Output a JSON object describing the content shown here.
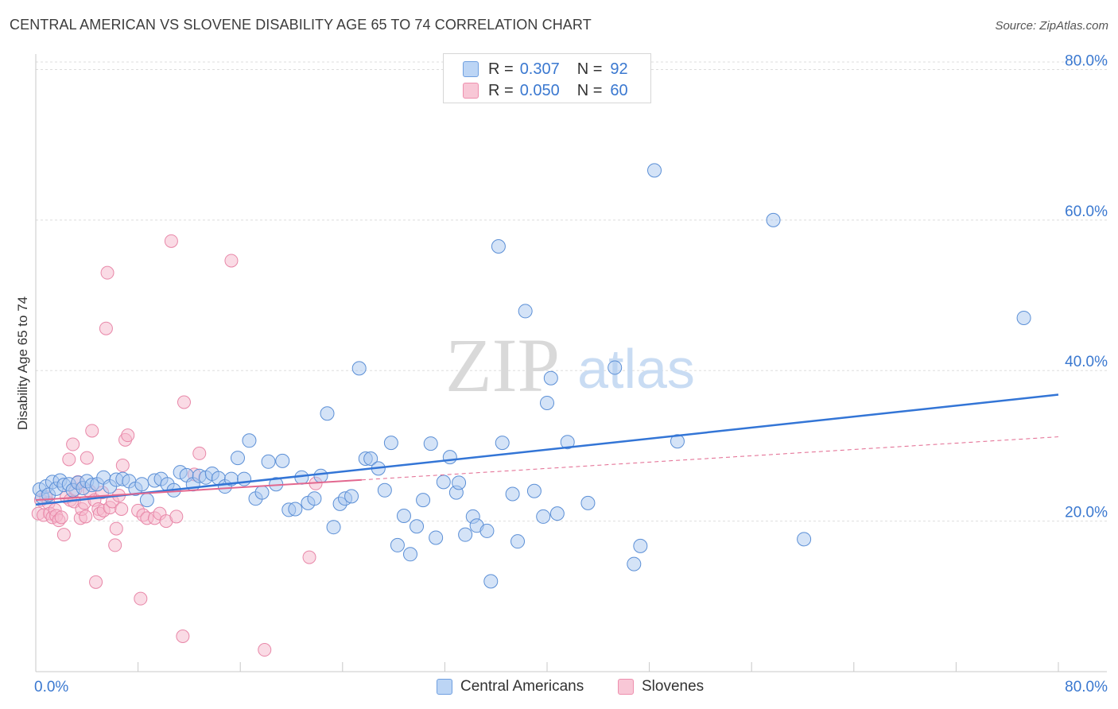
{
  "header": {
    "title": "CENTRAL AMERICAN VS SLOVENE DISABILITY AGE 65 TO 74 CORRELATION CHART",
    "source": "Source: ZipAtlas.com"
  },
  "watermark": {
    "zip": "ZIP",
    "atlas": "atlas"
  },
  "legend": {
    "r_label": "R =",
    "n_label": "N =",
    "series": [
      {
        "name": "Central Americans",
        "r": "0.307",
        "n": "92"
      },
      {
        "name": "Slovenes",
        "r": "0.050",
        "n": "60"
      }
    ]
  },
  "colors": {
    "blue_fill": "#a9c8f0",
    "blue_stroke": "#5b8fd6",
    "blue_line": "#3375d6",
    "pink_fill": "#f6b8cc",
    "pink_stroke": "#e887a8",
    "pink_line": "#e2688f",
    "axis_text": "#3a78d0"
  },
  "chart_data": {
    "type": "scatter",
    "title": "CENTRAL AMERICAN VS SLOVENE DISABILITY AGE 65 TO 74 CORRELATION CHART",
    "xlabel": "",
    "ylabel": "Disability Age 65 to 74",
    "xlim": [
      0,
      80
    ],
    "ylim": [
      0,
      81
    ],
    "x_tick_labels": [
      "0.0%",
      "80.0%"
    ],
    "y_ticks": [
      20,
      40,
      60,
      80
    ],
    "y_tick_labels": [
      "20.0%",
      "40.0%",
      "60.0%",
      "80.0%"
    ],
    "grid": true,
    "series": [
      {
        "name": "Central Americans",
        "r": 0.307,
        "n": 92,
        "trend": {
          "x": [
            0,
            80
          ],
          "y": [
            22.2,
            36.8
          ],
          "style": "solid"
        },
        "points": [
          {
            "x": 0.3,
            "y": 24.2
          },
          {
            "x": 0.5,
            "y": 23.2
          },
          {
            "x": 0.8,
            "y": 24.6
          },
          {
            "x": 1.0,
            "y": 23.5
          },
          {
            "x": 1.3,
            "y": 25.2
          },
          {
            "x": 1.6,
            "y": 24.3
          },
          {
            "x": 1.9,
            "y": 25.4
          },
          {
            "x": 2.2,
            "y": 24.8
          },
          {
            "x": 2.6,
            "y": 24.9
          },
          {
            "x": 2.9,
            "y": 24.1
          },
          {
            "x": 3.3,
            "y": 25.1
          },
          {
            "x": 3.7,
            "y": 24.4
          },
          {
            "x": 4.0,
            "y": 25.3
          },
          {
            "x": 4.4,
            "y": 24.8
          },
          {
            "x": 4.8,
            "y": 24.9
          },
          {
            "x": 5.3,
            "y": 25.8
          },
          {
            "x": 5.8,
            "y": 24.6
          },
          {
            "x": 6.3,
            "y": 25.5
          },
          {
            "x": 6.8,
            "y": 25.6
          },
          {
            "x": 7.3,
            "y": 25.3
          },
          {
            "x": 7.8,
            "y": 24.3
          },
          {
            "x": 8.3,
            "y": 24.9
          },
          {
            "x": 8.7,
            "y": 22.8
          },
          {
            "x": 9.3,
            "y": 25.4
          },
          {
            "x": 9.8,
            "y": 25.6
          },
          {
            "x": 10.3,
            "y": 24.9
          },
          {
            "x": 10.8,
            "y": 24.1
          },
          {
            "x": 11.3,
            "y": 26.5
          },
          {
            "x": 11.8,
            "y": 26.1
          },
          {
            "x": 12.3,
            "y": 24.9
          },
          {
            "x": 12.8,
            "y": 26.0
          },
          {
            "x": 13.3,
            "y": 25.8
          },
          {
            "x": 13.8,
            "y": 26.3
          },
          {
            "x": 14.3,
            "y": 25.7
          },
          {
            "x": 14.8,
            "y": 24.6
          },
          {
            "x": 15.3,
            "y": 25.6
          },
          {
            "x": 15.8,
            "y": 28.4
          },
          {
            "x": 16.3,
            "y": 25.6
          },
          {
            "x": 16.7,
            "y": 30.7
          },
          {
            "x": 17.2,
            "y": 23.0
          },
          {
            "x": 17.7,
            "y": 23.8
          },
          {
            "x": 18.2,
            "y": 27.9
          },
          {
            "x": 18.8,
            "y": 24.9
          },
          {
            "x": 19.3,
            "y": 28.0
          },
          {
            "x": 19.8,
            "y": 21.5
          },
          {
            "x": 20.3,
            "y": 21.6
          },
          {
            "x": 20.8,
            "y": 25.8
          },
          {
            "x": 21.3,
            "y": 22.4
          },
          {
            "x": 21.8,
            "y": 23.0
          },
          {
            "x": 22.3,
            "y": 26.0
          },
          {
            "x": 22.8,
            "y": 34.3
          },
          {
            "x": 23.3,
            "y": 19.2
          },
          {
            "x": 23.8,
            "y": 22.3
          },
          {
            "x": 24.2,
            "y": 23.0
          },
          {
            "x": 24.7,
            "y": 23.3
          },
          {
            "x": 25.3,
            "y": 40.3
          },
          {
            "x": 25.8,
            "y": 28.3
          },
          {
            "x": 26.2,
            "y": 28.3
          },
          {
            "x": 26.8,
            "y": 27.0
          },
          {
            "x": 27.3,
            "y": 24.1
          },
          {
            "x": 27.8,
            "y": 30.4
          },
          {
            "x": 28.3,
            "y": 16.8
          },
          {
            "x": 28.8,
            "y": 20.7
          },
          {
            "x": 29.3,
            "y": 15.6
          },
          {
            "x": 29.8,
            "y": 19.3
          },
          {
            "x": 30.3,
            "y": 22.8
          },
          {
            "x": 30.9,
            "y": 30.3
          },
          {
            "x": 31.3,
            "y": 17.8
          },
          {
            "x": 31.9,
            "y": 25.2
          },
          {
            "x": 32.4,
            "y": 28.5
          },
          {
            "x": 32.9,
            "y": 23.8
          },
          {
            "x": 33.1,
            "y": 25.1
          },
          {
            "x": 33.6,
            "y": 18.2
          },
          {
            "x": 34.2,
            "y": 20.6
          },
          {
            "x": 34.5,
            "y": 19.4
          },
          {
            "x": 35.3,
            "y": 18.7
          },
          {
            "x": 35.6,
            "y": 12.0
          },
          {
            "x": 36.2,
            "y": 56.5
          },
          {
            "x": 36.5,
            "y": 30.4
          },
          {
            "x": 37.3,
            "y": 23.6
          },
          {
            "x": 37.7,
            "y": 17.3
          },
          {
            "x": 38.3,
            "y": 47.9
          },
          {
            "x": 39.0,
            "y": 24.0
          },
          {
            "x": 39.7,
            "y": 20.6
          },
          {
            "x": 40.0,
            "y": 35.7
          },
          {
            "x": 40.3,
            "y": 39.0
          },
          {
            "x": 40.8,
            "y": 21.0
          },
          {
            "x": 41.6,
            "y": 30.5
          },
          {
            "x": 43.2,
            "y": 22.4
          },
          {
            "x": 45.3,
            "y": 40.4
          },
          {
            "x": 46.8,
            "y": 14.3
          },
          {
            "x": 47.3,
            "y": 16.7
          },
          {
            "x": 48.4,
            "y": 66.6
          },
          {
            "x": 50.2,
            "y": 30.6
          },
          {
            "x": 57.7,
            "y": 60.0
          },
          {
            "x": 60.1,
            "y": 17.6
          },
          {
            "x": 77.3,
            "y": 47.0
          }
        ]
      },
      {
        "name": "Slovenes",
        "r": 0.05,
        "n": 60,
        "trend": {
          "x": [
            0,
            80
          ],
          "y": [
            22.8,
            31.2
          ],
          "style": "solid-then-dashed",
          "solid_until_x": 25.5
        },
        "points": [
          {
            "x": 0.2,
            "y": 21.0
          },
          {
            "x": 0.4,
            "y": 22.8
          },
          {
            "x": 0.6,
            "y": 20.8
          },
          {
            "x": 0.8,
            "y": 23.2
          },
          {
            "x": 1.0,
            "y": 22.4
          },
          {
            "x": 1.1,
            "y": 21.0
          },
          {
            "x": 1.3,
            "y": 20.5
          },
          {
            "x": 1.5,
            "y": 21.5
          },
          {
            "x": 1.6,
            "y": 20.7
          },
          {
            "x": 1.8,
            "y": 20.1
          },
          {
            "x": 2.0,
            "y": 20.5
          },
          {
            "x": 2.2,
            "y": 18.2
          },
          {
            "x": 2.4,
            "y": 23.2
          },
          {
            "x": 2.6,
            "y": 28.2
          },
          {
            "x": 2.7,
            "y": 22.8
          },
          {
            "x": 2.9,
            "y": 30.2
          },
          {
            "x": 3.0,
            "y": 22.6
          },
          {
            "x": 3.1,
            "y": 24.2
          },
          {
            "x": 3.3,
            "y": 25.2
          },
          {
            "x": 3.5,
            "y": 20.4
          },
          {
            "x": 3.6,
            "y": 21.6
          },
          {
            "x": 3.8,
            "y": 22.4
          },
          {
            "x": 3.9,
            "y": 20.6
          },
          {
            "x": 4.0,
            "y": 28.4
          },
          {
            "x": 4.2,
            "y": 24.0
          },
          {
            "x": 4.4,
            "y": 32.0
          },
          {
            "x": 4.6,
            "y": 22.8
          },
          {
            "x": 4.7,
            "y": 11.9
          },
          {
            "x": 4.9,
            "y": 21.6
          },
          {
            "x": 5.0,
            "y": 21.0
          },
          {
            "x": 5.2,
            "y": 23.8
          },
          {
            "x": 5.3,
            "y": 21.4
          },
          {
            "x": 5.5,
            "y": 45.6
          },
          {
            "x": 5.6,
            "y": 53.0
          },
          {
            "x": 5.8,
            "y": 21.8
          },
          {
            "x": 6.0,
            "y": 22.6
          },
          {
            "x": 6.2,
            "y": 16.8
          },
          {
            "x": 6.3,
            "y": 19.0
          },
          {
            "x": 6.5,
            "y": 23.4
          },
          {
            "x": 6.7,
            "y": 21.6
          },
          {
            "x": 6.8,
            "y": 27.4
          },
          {
            "x": 7.0,
            "y": 30.8
          },
          {
            "x": 7.2,
            "y": 31.4
          },
          {
            "x": 8.0,
            "y": 21.4
          },
          {
            "x": 8.2,
            "y": 9.7
          },
          {
            "x": 8.4,
            "y": 20.8
          },
          {
            "x": 8.7,
            "y": 20.4
          },
          {
            "x": 9.3,
            "y": 20.4
          },
          {
            "x": 9.7,
            "y": 21.0
          },
          {
            "x": 10.2,
            "y": 20.0
          },
          {
            "x": 10.6,
            "y": 57.2
          },
          {
            "x": 11.0,
            "y": 20.6
          },
          {
            "x": 11.5,
            "y": 4.7
          },
          {
            "x": 11.6,
            "y": 35.8
          },
          {
            "x": 12.4,
            "y": 26.2
          },
          {
            "x": 12.8,
            "y": 29.0
          },
          {
            "x": 15.3,
            "y": 54.6
          },
          {
            "x": 17.9,
            "y": 2.9
          },
          {
            "x": 21.4,
            "y": 15.2
          },
          {
            "x": 21.9,
            "y": 25.0
          }
        ]
      }
    ]
  }
}
